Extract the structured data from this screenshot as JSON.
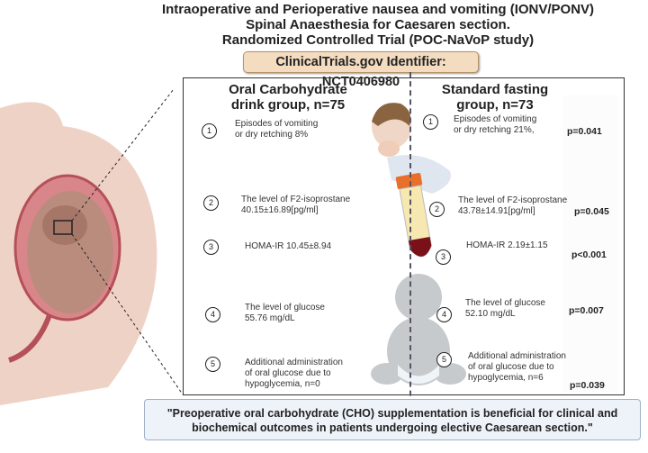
{
  "title_lines": [
    "Intraoperative and Perioperative nausea and vomiting (IONV/PONV)",
    "Spinal Anaesthesia for Caesaren section.",
    "Randomized Controlled Trial (POC-NaVoP study)"
  ],
  "identifier": "ClinicalTrials.gov Identifier: NCT0406980",
  "groups": {
    "left": {
      "heading": [
        "Oral Carbohydrate",
        "drink group, n=75"
      ]
    },
    "right": {
      "heading": [
        "Standard fasting",
        "group, n=73"
      ]
    }
  },
  "outcomes": [
    {
      "num": "1",
      "left": [
        "Episodes of vomiting",
        "or dry retching 8%"
      ],
      "right": [
        "Episodes of vomiting",
        "or dry retching 21%,"
      ],
      "p": "p=0.041"
    },
    {
      "num": "2",
      "left": [
        "The level of F2-isoprostane",
        "40.15±16.89[pg/ml]"
      ],
      "right": [
        "The level of F2-isoprostane",
        "43.78±14.91[pg/ml]"
      ],
      "p": "p=0.045"
    },
    {
      "num": "3",
      "left": [
        "HOMA-IR 10.45±8.94"
      ],
      "right": [
        "HOMA-IR 2.19±1.15"
      ],
      "p": "p<0.001"
    },
    {
      "num": "4",
      "left": [
        "The level of glucose",
        "55.76 mg/dL"
      ],
      "right": [
        "The level of glucose",
        "52.10 mg/dL"
      ],
      "p": "p=0.007"
    },
    {
      "num": "5",
      "left": [
        "Additional administration",
        "of oral glucose due to",
        "hypoglycemia, n=0"
      ],
      "right": [
        "Additional administration",
        "of oral glucose due to",
        "hypoglycemia, n=6"
      ],
      "p": "p=0.039"
    }
  ],
  "conclusion": [
    "\"Preoperative oral carbohydrate (CHO) supplementation is beneficial for clinical and",
    "biochemical outcomes in patients undergoing elective Caesarean section.\""
  ],
  "colors": {
    "identifier_bg": "#f3dcc0",
    "conclusion_bg": "#eef3f9",
    "tube_cap": "#e8702a",
    "blood": "#7a1018"
  }
}
